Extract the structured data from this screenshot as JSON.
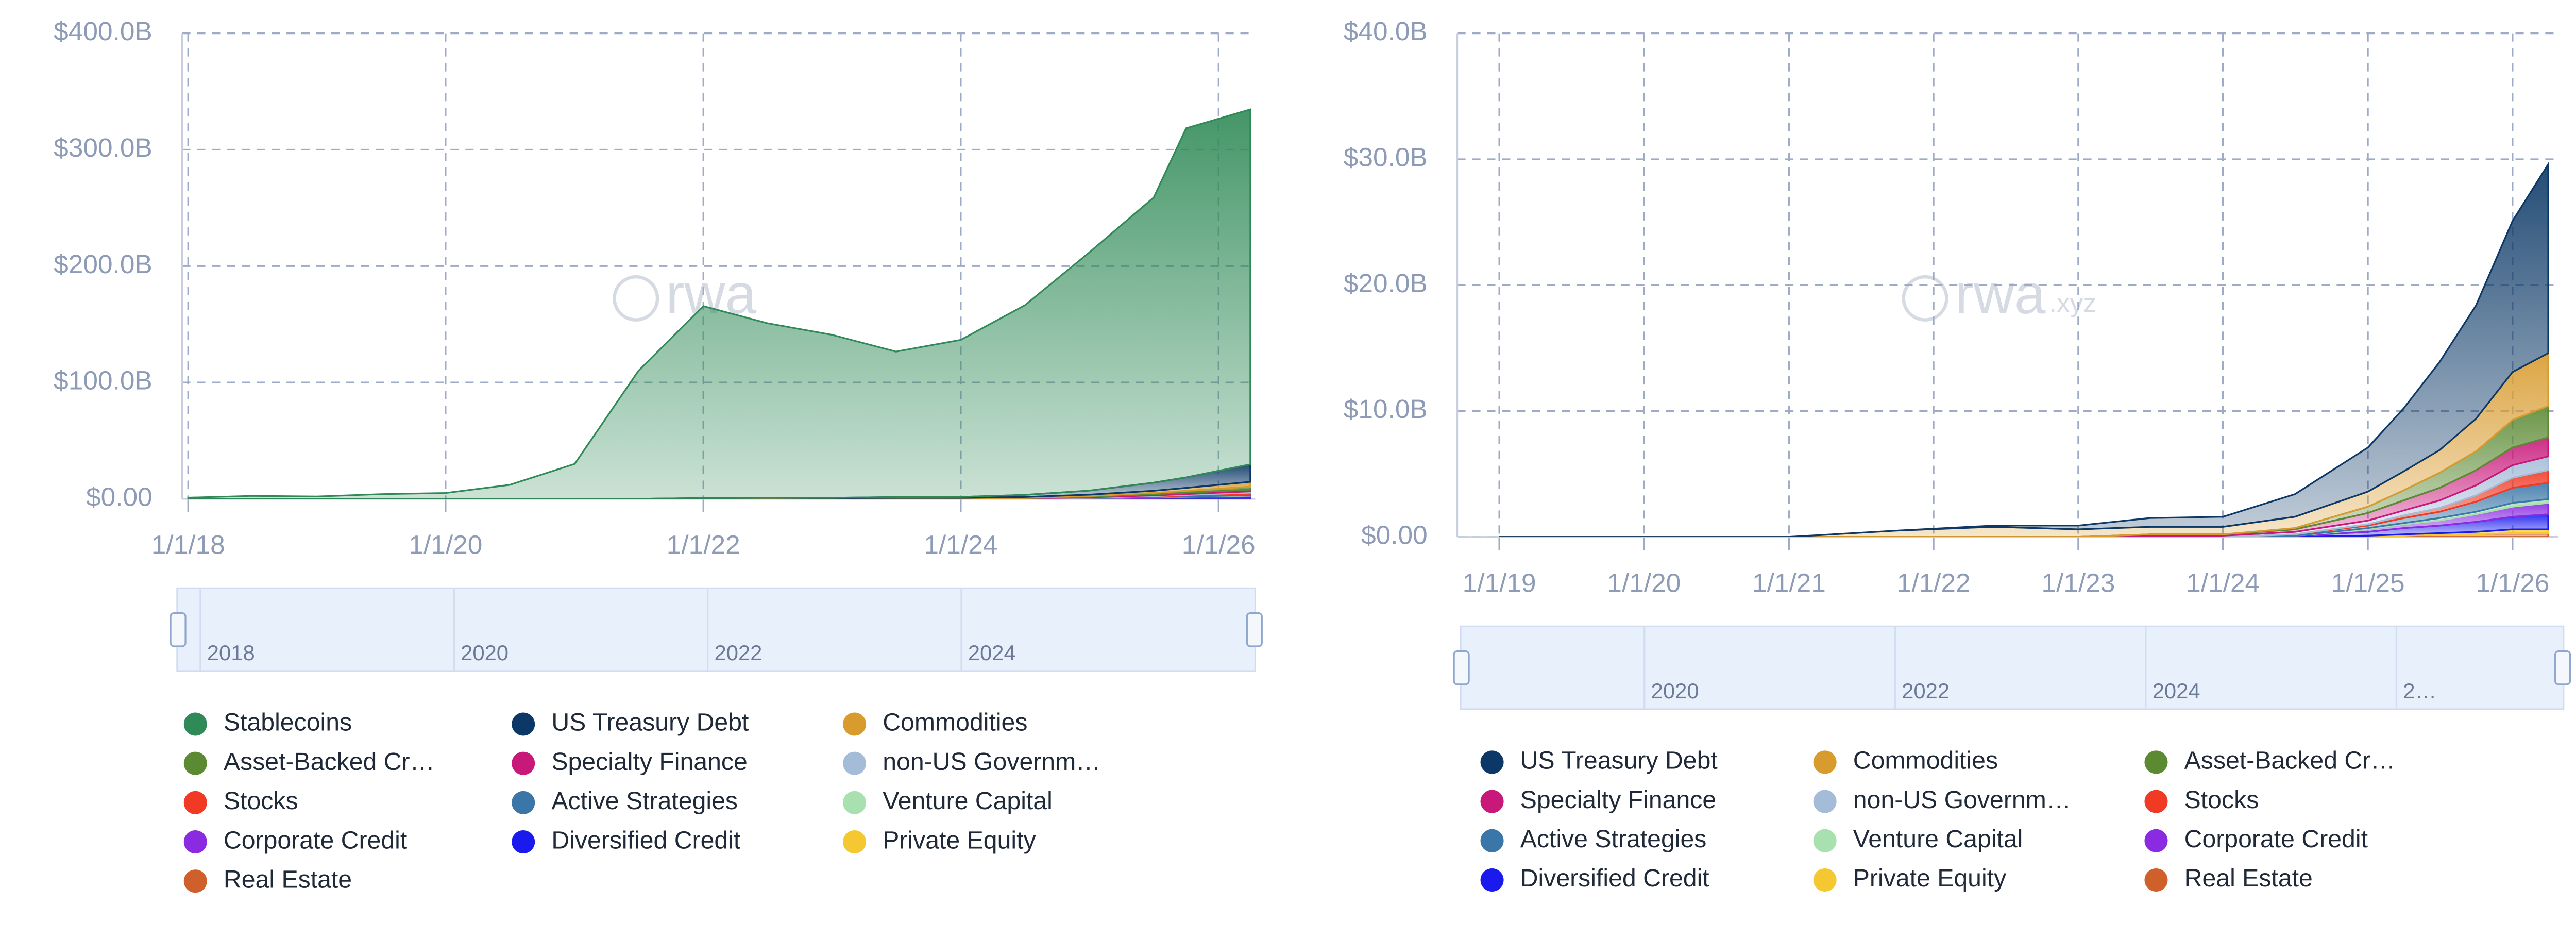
{
  "chart_data": [
    {
      "type": "area",
      "stacked": true,
      "grid": true,
      "watermark": "rwa",
      "navigator_labels": [
        "2018",
        "2020",
        "2022",
        "2024"
      ],
      "x": [
        "2018-01-01",
        "2018-07-01",
        "2019-01-01",
        "2019-07-01",
        "2020-01-01",
        "2020-07-01",
        "2021-01-01",
        "2021-07-01",
        "2022-01-01",
        "2022-07-01",
        "2023-01-01",
        "2023-07-01",
        "2024-01-01",
        "2024-07-01",
        "2025-01-01",
        "2025-07-01",
        "2025-10-01",
        "2026-04-01"
      ],
      "xlim": [
        "2017-12-15",
        "2026-04-15"
      ],
      "xticks": [
        {
          "value": "2018-01-01",
          "label": "1/1/18"
        },
        {
          "value": "2020-01-01",
          "label": "1/1/20"
        },
        {
          "value": "2022-01-01",
          "label": "1/1/22"
        },
        {
          "value": "2024-01-01",
          "label": "1/1/24"
        },
        {
          "value": "2026-01-01",
          "label": "1/1/26"
        }
      ],
      "ylim": [
        0,
        400
      ],
      "yticks": [
        {
          "value": 0,
          "label": "$0.00"
        },
        {
          "value": 100,
          "label": "$100.0B"
        },
        {
          "value": 200,
          "label": "$200.0B"
        },
        {
          "value": 300,
          "label": "$300.0B"
        },
        {
          "value": 400,
          "label": "$400.0B"
        }
      ],
      "series": [
        {
          "name": "Stablecoins",
          "color": "#2f8a57",
          "values": [
            1,
            2.5,
            2,
            4,
            5,
            12,
            30,
            110,
            165,
            150,
            140,
            125,
            135,
            163,
            205,
            245,
            300,
            305
          ]
        },
        {
          "name": "US Treasury Debt",
          "color": "#0b3866",
          "values": [
            0,
            0,
            0,
            0,
            0,
            0,
            0,
            0,
            0,
            0.1,
            0.3,
            0.7,
            0.8,
            1.8,
            3.5,
            7,
            9,
            15
          ]
        },
        {
          "name": "Commodities",
          "color": "#d89b2e",
          "values": [
            0,
            0,
            0,
            0,
            0,
            0,
            0,
            0,
            0.6,
            0.8,
            0.6,
            0.6,
            0.6,
            0.9,
            1.2,
            1.8,
            2.6,
            4.2
          ]
        },
        {
          "name": "Asset-Backed Cr…",
          "color": "#5b8a33",
          "values": [
            0,
            0,
            0,
            0,
            0,
            0,
            0,
            0,
            0,
            0,
            0,
            0,
            0,
            0.1,
            0.5,
            1.2,
            1.5,
            2.5
          ]
        },
        {
          "name": "Specialty Finance",
          "color": "#c8187a",
          "values": [
            0,
            0,
            0,
            0,
            0,
            0,
            0,
            0,
            0,
            0,
            0,
            0.1,
            0.1,
            0.2,
            0.6,
            1,
            1.2,
            1.5
          ]
        },
        {
          "name": "non-US Governm…",
          "color": "#a5bcd8",
          "values": [
            0,
            0,
            0,
            0,
            0,
            0,
            0,
            0,
            0,
            0,
            0,
            0.1,
            0.1,
            0.2,
            0.3,
            0.6,
            0.8,
            1.1
          ]
        },
        {
          "name": "Stocks",
          "color": "#f03a24",
          "values": [
            0,
            0,
            0,
            0,
            0,
            0,
            0,
            0,
            0,
            0,
            0,
            0,
            0,
            0,
            0.1,
            0.3,
            0.5,
            1
          ]
        },
        {
          "name": "Active Strategies",
          "color": "#3a77a8",
          "values": [
            0,
            0,
            0,
            0,
            0,
            0,
            0,
            0,
            0,
            0,
            0,
            0,
            0,
            0.1,
            0.2,
            0.5,
            0.8,
            1.3
          ]
        },
        {
          "name": "Venture Capital",
          "color": "#a9e0b0",
          "values": [
            0,
            0,
            0,
            0,
            0,
            0,
            0,
            0,
            0,
            0,
            0,
            0,
            0,
            0,
            0.1,
            0.2,
            0.2,
            0.3
          ]
        },
        {
          "name": "Corporate Credit",
          "color": "#8a2be2",
          "values": [
            0,
            0,
            0,
            0,
            0,
            0,
            0,
            0,
            0,
            0,
            0,
            0,
            0,
            0,
            0.2,
            0.4,
            0.6,
            0.9
          ]
        },
        {
          "name": "Diversified Credit",
          "color": "#1a1aef",
          "values": [
            0,
            0,
            0,
            0,
            0,
            0,
            0,
            0,
            0,
            0,
            0,
            0,
            0,
            0.1,
            0.3,
            0.6,
            0.8,
            1.2
          ]
        },
        {
          "name": "Private Equity",
          "color": "#f5c832",
          "values": [
            0,
            0,
            0,
            0,
            0,
            0,
            0,
            0,
            0,
            0,
            0,
            0,
            0,
            0,
            0,
            0.1,
            0.2,
            0.3
          ]
        },
        {
          "name": "Real Estate",
          "color": "#d0602b",
          "values": [
            0,
            0,
            0,
            0,
            0,
            0,
            0,
            0,
            0,
            0,
            0,
            0,
            0,
            0,
            0.1,
            0.2,
            0.2,
            0.3
          ]
        }
      ]
    },
    {
      "type": "area",
      "stacked": true,
      "grid": true,
      "watermark": "rwa",
      "watermark_suffix": ".xyz",
      "navigator_labels": [
        "2020",
        "2022",
        "2024",
        "2…"
      ],
      "x": [
        "2019-01-01",
        "2020-01-01",
        "2021-01-01",
        "2021-10-01",
        "2022-06-01",
        "2023-01-01",
        "2023-07-01",
        "2024-01-01",
        "2024-07-01",
        "2025-01-01",
        "2025-04-01",
        "2025-07-01",
        "2025-10-01",
        "2026-01-01",
        "2026-04-01"
      ],
      "xlim": [
        "2018-09-17",
        "2026-04-27"
      ],
      "xticks": [
        {
          "value": "2019-01-01",
          "label": "1/1/19"
        },
        {
          "value": "2020-01-01",
          "label": "1/1/20"
        },
        {
          "value": "2021-01-01",
          "label": "1/1/21"
        },
        {
          "value": "2022-01-01",
          "label": "1/1/22"
        },
        {
          "value": "2023-01-01",
          "label": "1/1/23"
        },
        {
          "value": "2024-01-01",
          "label": "1/1/24"
        },
        {
          "value": "2025-01-01",
          "label": "1/1/25"
        },
        {
          "value": "2026-01-01",
          "label": "1/1/26"
        }
      ],
      "ylim": [
        0,
        40
      ],
      "yticks": [
        {
          "value": 0,
          "label": "$0.00"
        },
        {
          "value": 10,
          "label": "$10.0B"
        },
        {
          "value": 20,
          "label": "$20.0B"
        },
        {
          "value": 30,
          "label": "$30.0B"
        },
        {
          "value": 40,
          "label": "$40.0B"
        }
      ],
      "series": [
        {
          "name": "US Treasury Debt",
          "color": "#0b3866",
          "values": [
            0,
            0,
            0,
            0,
            0.1,
            0.3,
            0.7,
            0.8,
            1.8,
            3.5,
            5,
            7,
            9,
            12,
            15
          ]
        },
        {
          "name": "Commodities",
          "color": "#d89b2e",
          "values": [
            0,
            0,
            0,
            0.5,
            0.8,
            0.6,
            0.6,
            0.6,
            0.9,
            1.2,
            1.5,
            1.8,
            2.6,
            3.8,
            4.2
          ]
        },
        {
          "name": "Asset-Backed Cr…",
          "color": "#5b8a33",
          "values": [
            0,
            0,
            0,
            0,
            0,
            0,
            0,
            0,
            0.1,
            0.5,
            0.8,
            1.2,
            1.5,
            2.2,
            2.5
          ]
        },
        {
          "name": "Specialty Finance",
          "color": "#c8187a",
          "values": [
            0,
            0,
            0,
            0,
            0,
            0,
            0.1,
            0.1,
            0.2,
            0.6,
            0.8,
            1,
            1.2,
            1.4,
            1.5
          ]
        },
        {
          "name": "non-US Governm…",
          "color": "#a5bcd8",
          "values": [
            0,
            0,
            0,
            0,
            0,
            0,
            0.1,
            0.1,
            0.2,
            0.3,
            0.4,
            0.6,
            0.8,
            1,
            1.1
          ]
        },
        {
          "name": "Stocks",
          "color": "#f03a24",
          "values": [
            0,
            0,
            0,
            0,
            0,
            0,
            0,
            0,
            0,
            0.1,
            0.2,
            0.3,
            0.5,
            0.8,
            1
          ]
        },
        {
          "name": "Active Strategies",
          "color": "#3a77a8",
          "values": [
            0,
            0,
            0,
            0,
            0,
            0,
            0,
            0,
            0.1,
            0.2,
            0.4,
            0.5,
            0.8,
            1.2,
            1.3
          ]
        },
        {
          "name": "Venture Capital",
          "color": "#a9e0b0",
          "values": [
            0,
            0,
            0,
            0,
            0,
            0,
            0,
            0,
            0,
            0.1,
            0.1,
            0.2,
            0.2,
            0.3,
            0.3
          ]
        },
        {
          "name": "Corporate Credit",
          "color": "#8a2be2",
          "values": [
            0,
            0,
            0,
            0,
            0,
            0,
            0,
            0,
            0,
            0.2,
            0.3,
            0.4,
            0.6,
            0.8,
            0.9
          ]
        },
        {
          "name": "Diversified Credit",
          "color": "#1a1aef",
          "values": [
            0,
            0,
            0,
            0,
            0,
            0,
            0,
            0,
            0.1,
            0.3,
            0.5,
            0.6,
            0.8,
            1,
            1.2
          ]
        },
        {
          "name": "Private Equity",
          "color": "#f5c832",
          "values": [
            0,
            0,
            0,
            0,
            0,
            0,
            0,
            0,
            0,
            0,
            0.1,
            0.1,
            0.2,
            0.3,
            0.3
          ]
        },
        {
          "name": "Real Estate",
          "color": "#d0602b",
          "values": [
            0,
            0,
            0,
            0,
            0,
            0,
            0,
            0,
            0,
            0.1,
            0.1,
            0.2,
            0.2,
            0.3,
            0.3
          ]
        }
      ]
    }
  ]
}
